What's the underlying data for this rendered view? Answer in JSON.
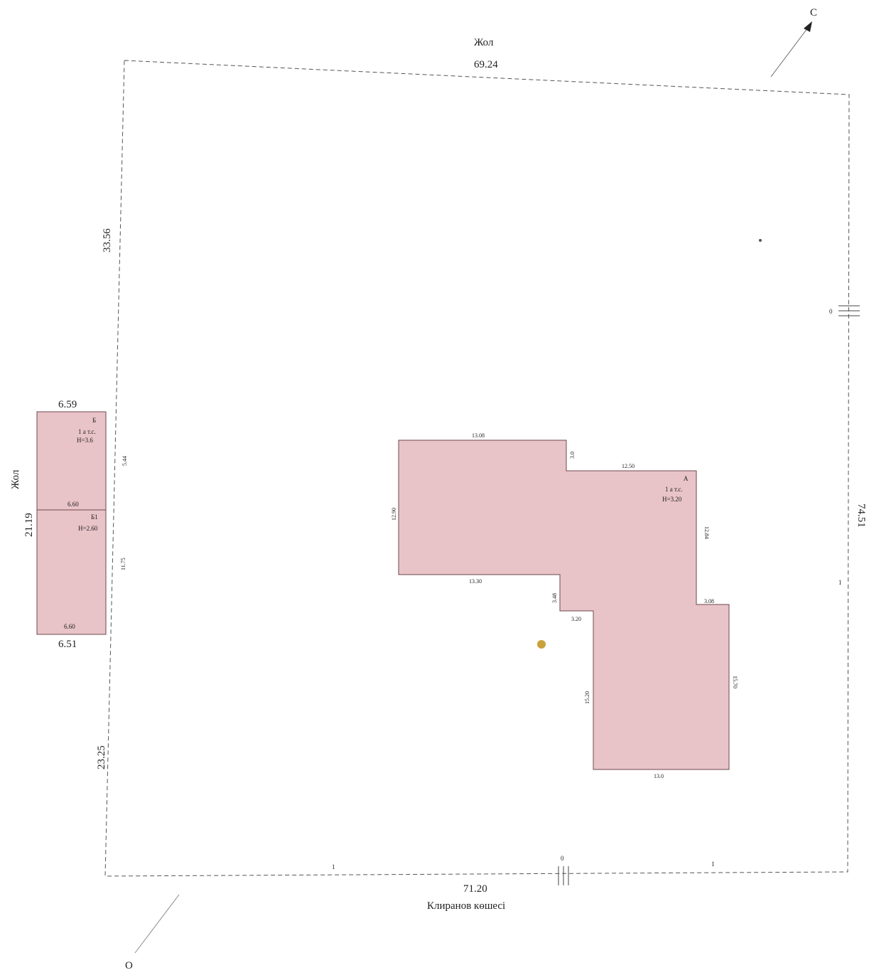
{
  "labels": {
    "top_street": "Жол",
    "top_length": "69.24",
    "north": "С",
    "south": "О",
    "left_street": "Жол",
    "left_upper": "33.56",
    "left_mid": "21.19",
    "left_lower": "23.25",
    "right_length": "74.51",
    "bottom_length": "71.20",
    "bottom_street": "Клиранов көшесі",
    "zero_right": "0",
    "zero_bottom": "0",
    "one_bottom_left": "1",
    "one_bottom_right": "1",
    "one_right": "1"
  },
  "building_left": {
    "top_outer": "6.59",
    "bottom_outer": "6.51",
    "letter": "Б",
    "desc": "1 а т.с.",
    "height": "H=3.6",
    "mid_width": "6.60",
    "sub_letter": "Б1",
    "sub_height": "H=2.60",
    "bottom_inner": "6.60",
    "side_upper": "5.44",
    "side_lower": "11.75"
  },
  "building_main": {
    "top1": "13.08",
    "step1": "3.0",
    "top2": "12.50",
    "letter": "А",
    "desc": "1 а т.с.",
    "height": "H=3.20",
    "left": "12.90",
    "right_upper": "12.84",
    "bottom1": "13.30",
    "step2": "3.48",
    "step3": "3.20",
    "step4": "3.08",
    "wing_left": "15.20",
    "wing_right": "15.70",
    "wing_bottom": "13.0"
  },
  "colors": {
    "building_fill": "#e8c3c8",
    "building_stroke": "#6b4a4e",
    "boundary": "#555555",
    "marker": "#c9a23a"
  }
}
